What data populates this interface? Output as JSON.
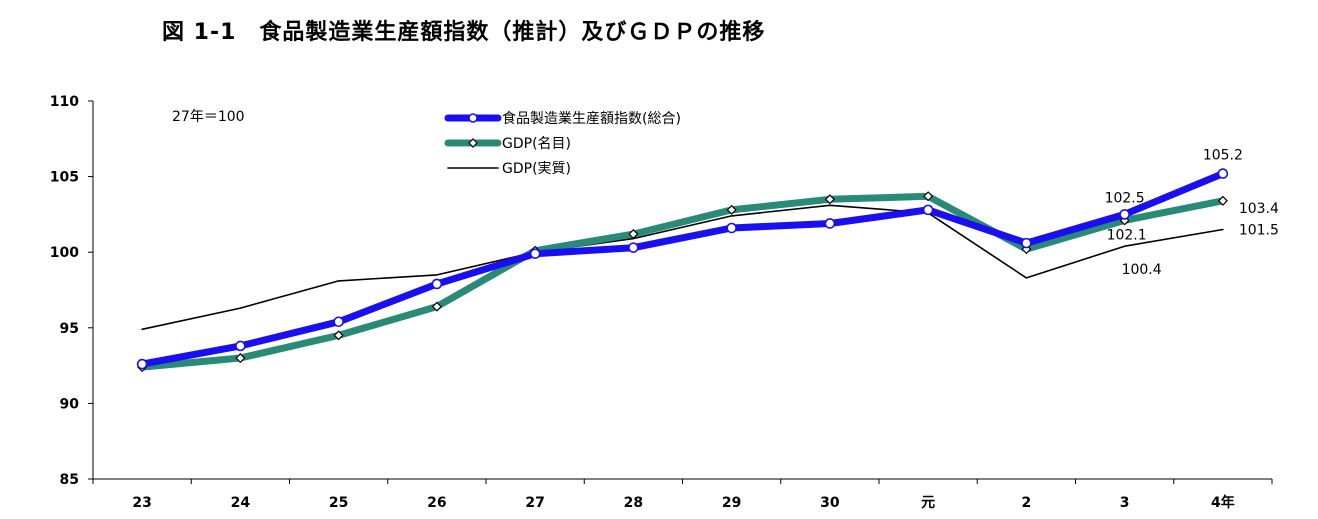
{
  "chart_data": {
    "type": "line",
    "title": "図 1-1　食品製造業生産額指数（推計）及びＧＤＰの推移",
    "note": "27年＝100",
    "categories": [
      "23",
      "24",
      "25",
      "26",
      "27",
      "28",
      "29",
      "30",
      "元",
      "2",
      "3",
      "4年"
    ],
    "ylim": [
      85,
      110
    ],
    "yticks": [
      85,
      90,
      95,
      100,
      105,
      110
    ],
    "grid": false,
    "legend_position": "top-center",
    "series": [
      {
        "name": "食品製造業生産額指数(総合)",
        "color": "#1a0ff0",
        "marker": "circle",
        "values": [
          92.6,
          93.8,
          95.4,
          97.9,
          99.9,
          100.3,
          101.6,
          101.9,
          102.8,
          100.6,
          102.5,
          105.2
        ]
      },
      {
        "name": "GDP(名目)",
        "color": "#2a8a78",
        "marker": "diamond",
        "values": [
          92.4,
          93.0,
          94.5,
          96.4,
          100.1,
          101.2,
          102.8,
          103.5,
          103.7,
          100.2,
          102.1,
          103.4
        ]
      },
      {
        "name": "GDP(実質)",
        "color": "#000000",
        "marker": "none",
        "values": [
          94.9,
          96.3,
          98.1,
          98.5,
          100.0,
          100.9,
          102.4,
          103.1,
          102.6,
          98.3,
          100.4,
          101.5
        ]
      }
    ],
    "data_labels": [
      {
        "series": 0,
        "index": 10,
        "text": "102.5"
      },
      {
        "series": 0,
        "index": 11,
        "text": "105.2"
      },
      {
        "series": 1,
        "index": 10,
        "text": "102.1"
      },
      {
        "series": 1,
        "index": 11,
        "text": "103.4"
      },
      {
        "series": 2,
        "index": 10,
        "text": "100.4"
      },
      {
        "series": 2,
        "index": 11,
        "text": "101.5"
      }
    ]
  }
}
